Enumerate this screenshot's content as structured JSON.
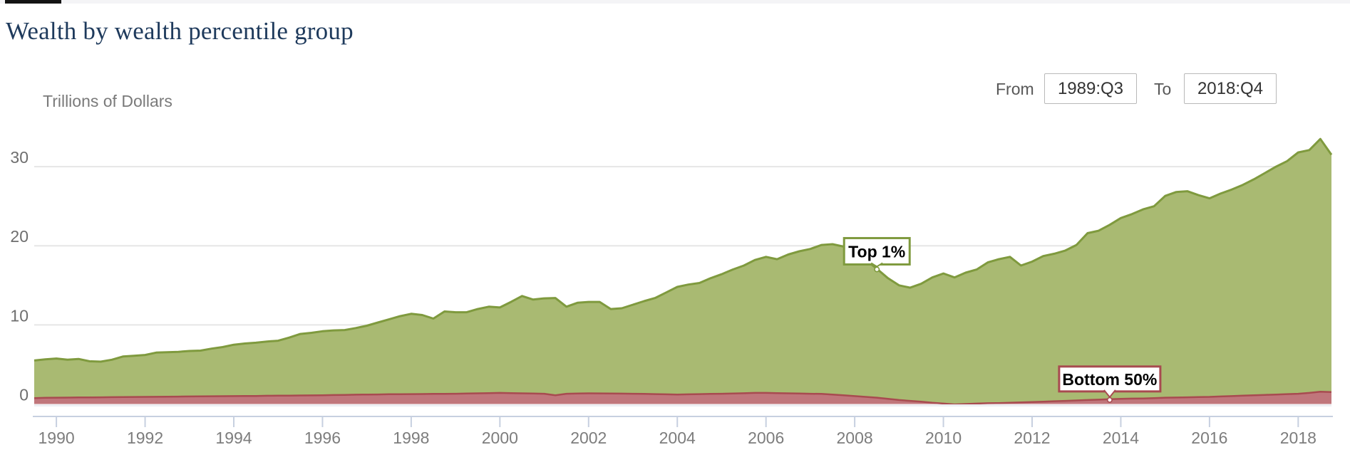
{
  "page": {
    "title": "Wealth by wealth percentile group"
  },
  "controls": {
    "from_label": "From",
    "from_value": "1989:Q3",
    "to_label": "To",
    "to_value": "2018:Q4"
  },
  "chart_data": {
    "type": "area",
    "title": "Wealth by wealth percentile group",
    "ylabel": "Trillions of Dollars",
    "xlabel": "",
    "x_start_quarter": "1989:Q3",
    "x_end_quarter": "2018:Q4",
    "x_tick_years": [
      1990,
      1992,
      1994,
      1996,
      1998,
      2000,
      2002,
      2004,
      2006,
      2008,
      2010,
      2012,
      2014,
      2016,
      2018
    ],
    "y_ticks": [
      0,
      10,
      20,
      30
    ],
    "ylim": [
      -1.6,
      36
    ],
    "grid": "horizontal",
    "legend_position": "inline-callouts",
    "colors": {
      "top1_fill": "#a9ba72",
      "top1_line": "#7f9a3e",
      "bottom50_fill": "#c0767b",
      "bottom50_line": "#a84b50",
      "gridline": "#e6e6e6",
      "axis": "#c7d0e0",
      "title": "#1e3a5c",
      "axis_text": "#7d7d7d"
    },
    "series": [
      {
        "name": "Top 1%",
        "units": "trillions of dollars",
        "values": [
          5.5,
          5.65,
          5.75,
          5.6,
          5.7,
          5.4,
          5.35,
          5.6,
          6.0,
          6.1,
          6.2,
          6.5,
          6.55,
          6.6,
          6.7,
          6.75,
          7.0,
          7.2,
          7.5,
          7.65,
          7.75,
          7.9,
          8.0,
          8.4,
          8.85,
          9.0,
          9.2,
          9.3,
          9.35,
          9.6,
          9.9,
          10.3,
          10.7,
          11.1,
          11.4,
          11.25,
          10.8,
          11.7,
          11.6,
          11.6,
          12.0,
          12.3,
          12.2,
          12.9,
          13.65,
          13.2,
          13.35,
          13.4,
          12.3,
          12.8,
          12.9,
          12.9,
          12.0,
          12.1,
          12.55,
          13.0,
          13.4,
          14.1,
          14.8,
          15.1,
          15.3,
          15.9,
          16.4,
          17.0,
          17.5,
          18.2,
          18.6,
          18.3,
          18.9,
          19.3,
          19.6,
          20.1,
          20.2,
          19.9,
          19.4,
          18.2,
          17.1,
          15.9,
          15.0,
          14.7,
          15.2,
          16.0,
          16.5,
          16.0,
          16.6,
          17.0,
          17.9,
          18.3,
          18.6,
          17.5,
          18.0,
          18.7,
          19.0,
          19.4,
          20.1,
          21.6,
          21.9,
          22.65,
          23.5,
          24.0,
          24.6,
          25.0,
          26.3,
          26.8,
          26.9,
          26.4,
          26.0,
          26.6,
          27.1,
          27.7,
          28.4,
          29.2,
          30.0,
          30.7,
          31.8,
          32.1,
          33.5,
          31.5
        ]
      },
      {
        "name": "Bottom 50%",
        "units": "trillions of dollars",
        "values": [
          0.75,
          0.78,
          0.8,
          0.81,
          0.83,
          0.84,
          0.85,
          0.86,
          0.88,
          0.89,
          0.9,
          0.91,
          0.93,
          0.94,
          0.95,
          0.96,
          0.98,
          0.99,
          1.0,
          1.01,
          1.02,
          1.04,
          1.05,
          1.06,
          1.08,
          1.09,
          1.1,
          1.13,
          1.15,
          1.18,
          1.2,
          1.21,
          1.23,
          1.24,
          1.25,
          1.26,
          1.28,
          1.29,
          1.3,
          1.33,
          1.35,
          1.38,
          1.4,
          1.38,
          1.35,
          1.33,
          1.3,
          1.1,
          1.3,
          1.33,
          1.35,
          1.34,
          1.33,
          1.31,
          1.3,
          1.28,
          1.25,
          1.22,
          1.2,
          1.22,
          1.25,
          1.28,
          1.3,
          1.33,
          1.36,
          1.4,
          1.4,
          1.38,
          1.35,
          1.33,
          1.3,
          1.28,
          1.2,
          1.1,
          1.0,
          0.9,
          0.8,
          0.65,
          0.5,
          0.4,
          0.3,
          0.15,
          0.05,
          -0.05,
          0.0,
          0.05,
          0.1,
          0.12,
          0.15,
          0.2,
          0.25,
          0.3,
          0.35,
          0.4,
          0.45,
          0.5,
          0.55,
          0.6,
          0.65,
          0.68,
          0.7,
          0.75,
          0.8,
          0.82,
          0.85,
          0.88,
          0.9,
          0.95,
          1.0,
          1.05,
          1.1,
          1.15,
          1.2,
          1.25,
          1.3,
          1.4,
          1.55,
          1.5
        ]
      }
    ],
    "annotations": [
      {
        "text": "Top 1%",
        "series": 0,
        "quarter": "2008:Q3",
        "quarter_index": 76,
        "value": 17.1
      },
      {
        "text": "Bottom 50%",
        "series": 1,
        "quarter": "2013:Q4",
        "quarter_index": 97,
        "value": 0.6
      }
    ]
  }
}
